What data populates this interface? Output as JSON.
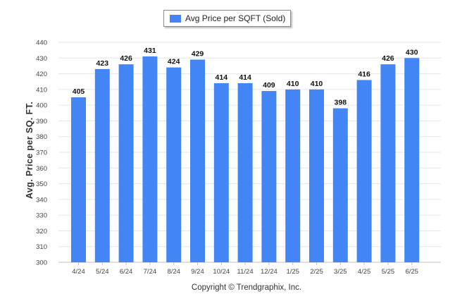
{
  "chart_data": {
    "type": "bar",
    "categories": [
      "4/24",
      "5/24",
      "6/24",
      "7/24",
      "8/24",
      "9/24",
      "10/24",
      "11/24",
      "12/24",
      "1/25",
      "2/25",
      "3/25",
      "4/25",
      "5/25",
      "6/25"
    ],
    "series": [
      {
        "name": "Avg Price per SQFT (Sold)",
        "values": [
          405,
          423,
          426,
          431,
          424,
          429,
          414,
          414,
          409,
          410,
          410,
          398,
          416,
          426,
          430
        ]
      }
    ],
    "ylabel": "Avg. Price per SQ. FT.",
    "xlabel": "",
    "ylim": [
      300,
      440
    ],
    "yticks": [
      300,
      310,
      320,
      330,
      340,
      350,
      360,
      370,
      380,
      390,
      400,
      410,
      420,
      430,
      440
    ],
    "grid": true,
    "legend": "top-center",
    "bar_color": "#4385f4",
    "footer": "Copyright © Trendgraphix, Inc."
  }
}
